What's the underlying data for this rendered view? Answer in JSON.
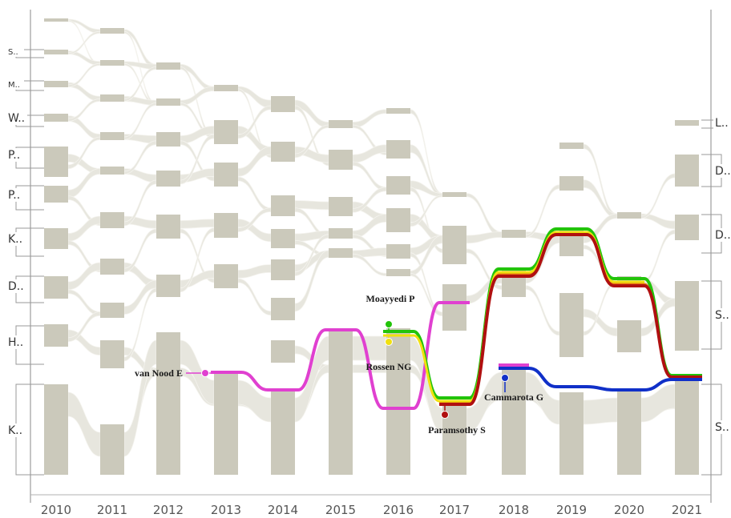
{
  "chart_data": {
    "type": "storyline",
    "years": [
      "2010",
      "2011",
      "2012",
      "2013",
      "2014",
      "2015",
      "2016",
      "2017",
      "2018",
      "2019",
      "2020",
      "2021"
    ],
    "left_cluster_labels": [
      "S..",
      "M..",
      "W..",
      "P..",
      "P..",
      "K..",
      "D..",
      "H..",
      "K.."
    ],
    "right_cluster_labels": [
      "L..",
      "D..",
      "D..",
      "S..",
      "S.."
    ],
    "highlighted_authors": [
      {
        "name": "van Nood E",
        "color": "#e040d0",
        "first_year": "2013"
      },
      {
        "name": "Moayyedi P",
        "color": "#22c40a",
        "first_year": "2016"
      },
      {
        "name": "Rossen NG",
        "color": "#f0e010",
        "first_year": "2016"
      },
      {
        "name": "Paramsothy S",
        "color": "#b01010",
        "first_year": "2017"
      },
      {
        "name": "Cammarota G",
        "color": "#1030c8",
        "first_year": "2018"
      }
    ],
    "grid": false,
    "legend": "none"
  },
  "colors": {
    "block": "#cbc9bb",
    "flow": "#e7e6de",
    "axis": "#b0b0b0",
    "bracket": "#999999",
    "orange_line": "#e87a10"
  }
}
